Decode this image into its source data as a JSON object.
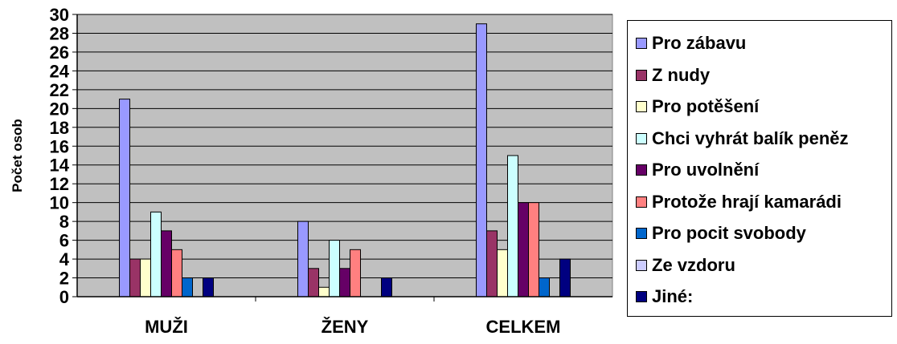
{
  "chart_data": {
    "type": "bar",
    "title": "",
    "xlabel": "",
    "ylabel": "Počet osob",
    "ylim": [
      0,
      30
    ],
    "yticks": [
      0,
      2,
      4,
      6,
      8,
      10,
      12,
      14,
      16,
      18,
      20,
      22,
      24,
      26,
      28,
      30
    ],
    "grid": true,
    "legend_position": "right",
    "plot_background": "#c0c0c0",
    "categories": [
      "MUŽI",
      "ŽENY",
      "CELKEM"
    ],
    "series": [
      {
        "name": "Pro zábavu",
        "color": "#9999ff",
        "values": [
          21,
          8,
          29
        ]
      },
      {
        "name": "Z nudy",
        "color": "#993366",
        "values": [
          4,
          3,
          7
        ]
      },
      {
        "name": "Pro potěšení",
        "color": "#ffffcc",
        "values": [
          4,
          1,
          5
        ]
      },
      {
        "name": "Chci vyhrát balík peněz",
        "color": "#ccffff",
        "values": [
          9,
          6,
          15
        ]
      },
      {
        "name": "Pro uvolnění",
        "color": "#660066",
        "values": [
          7,
          3,
          10
        ]
      },
      {
        "name": "Protože hrají kamarádi",
        "color": "#ff8080",
        "values": [
          5,
          5,
          10
        ]
      },
      {
        "name": "Pro pocit svobody",
        "color": "#0066cc",
        "values": [
          2,
          0,
          2
        ]
      },
      {
        "name": "Ze vzdoru",
        "color": "#ccccff",
        "values": [
          0,
          0,
          0
        ]
      },
      {
        "name": "Jiné:",
        "color": "#000080",
        "values": [
          2,
          2,
          4
        ]
      }
    ]
  }
}
